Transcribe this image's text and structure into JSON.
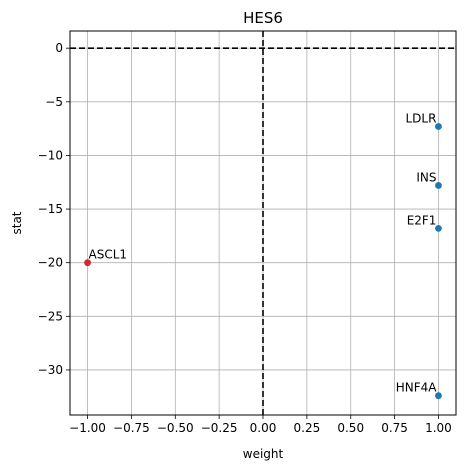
{
  "chart_data": {
    "type": "scatter",
    "title": "HES6",
    "xlabel": "weight",
    "ylabel": "stat",
    "xlim": [
      -1.1,
      1.1
    ],
    "ylim": [
      -34.2,
      1.6
    ],
    "xticks": [
      -1.0,
      -0.75,
      -0.5,
      -0.25,
      0.0,
      0.25,
      0.5,
      0.75,
      1.0
    ],
    "xtick_labels": [
      "−1.00",
      "−0.75",
      "−0.50",
      "−0.25",
      "0.00",
      "0.25",
      "0.50",
      "0.75",
      "1.00"
    ],
    "yticks": [
      0,
      -5,
      -10,
      -15,
      -20,
      -25,
      -30
    ],
    "ytick_labels": [
      "0",
      "−5",
      "−10",
      "−15",
      "−20",
      "−25",
      "−30"
    ],
    "grid": true,
    "reference_lines": {
      "horizontal_y": 0,
      "vertical_x": 0,
      "style": "dashed",
      "color": "#000000"
    },
    "colors": {
      "positive": "#1f77b4",
      "negative": "#d62728"
    },
    "points": [
      {
        "label": "LDLR",
        "x": 1.0,
        "y": -7.3,
        "color": "#1f77b4"
      },
      {
        "label": "INS",
        "x": 1.0,
        "y": -12.8,
        "color": "#1f77b4"
      },
      {
        "label": "E2F1",
        "x": 1.0,
        "y": -16.8,
        "color": "#1f77b4"
      },
      {
        "label": "ASCL1",
        "x": -1.0,
        "y": -20.0,
        "color": "#d62728"
      },
      {
        "label": "HNF4A",
        "x": 1.0,
        "y": -32.4,
        "color": "#1f77b4"
      }
    ]
  }
}
